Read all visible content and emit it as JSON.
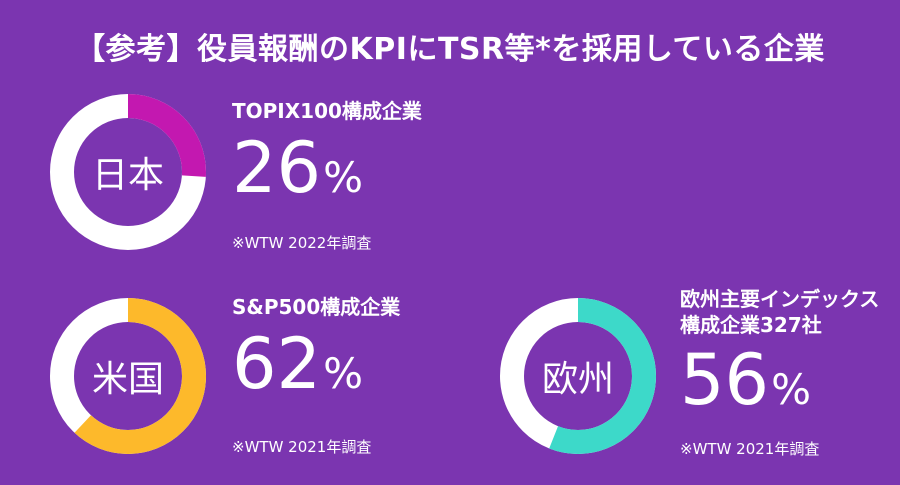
{
  "title": "【参考】役員報酬のKPIにTSR等*を採用している企業",
  "chart_data": [
    {
      "type": "pie",
      "region": "日本",
      "label": "TOPIX100構成企業",
      "value": 26,
      "unit": "%",
      "source": "※WTW 2022年調査",
      "color": "#C318B0",
      "remainder_color": "#FFFFFF"
    },
    {
      "type": "pie",
      "region": "米国",
      "label": "S&P500構成企業",
      "value": 62,
      "unit": "%",
      "source": "※WTW 2021年調査",
      "color": "#FDB92B",
      "remainder_color": "#FFFFFF"
    },
    {
      "type": "pie",
      "region": "欧州",
      "label_lines": [
        "欧州主要インデックス",
        "構成企業327社"
      ],
      "value": 56,
      "unit": "%",
      "source": "※WTW 2021年調査",
      "color": "#3DD9C9",
      "remainder_color": "#FFFFFF"
    }
  ]
}
